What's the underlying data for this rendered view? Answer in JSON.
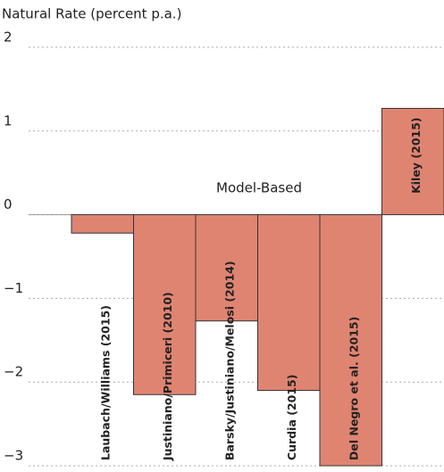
{
  "chart_data": {
    "type": "bar",
    "title": "Natural Rate (percent p.a.)",
    "annotation": "Model-Based",
    "categories": [
      "Laubach/Williams (2015)",
      "Justiniano/Primiceri (2010)",
      "Barsky/Justiniano/Melosi (2014)",
      "Curdia (2015)",
      "Del Negro et al. (2015)",
      "Kiley (2015)"
    ],
    "values": [
      -0.22,
      -2.15,
      -1.27,
      -2.1,
      -3.0,
      1.27
    ],
    "color": "#e08472",
    "ylim": [
      -3,
      2
    ],
    "yticks": [
      2,
      1,
      0,
      {
        "value": -1,
        "label": "−1"
      },
      {
        "value": -2,
        "label": "−2"
      },
      {
        "value": -3,
        "label": "−3"
      }
    ],
    "grid": true
  }
}
